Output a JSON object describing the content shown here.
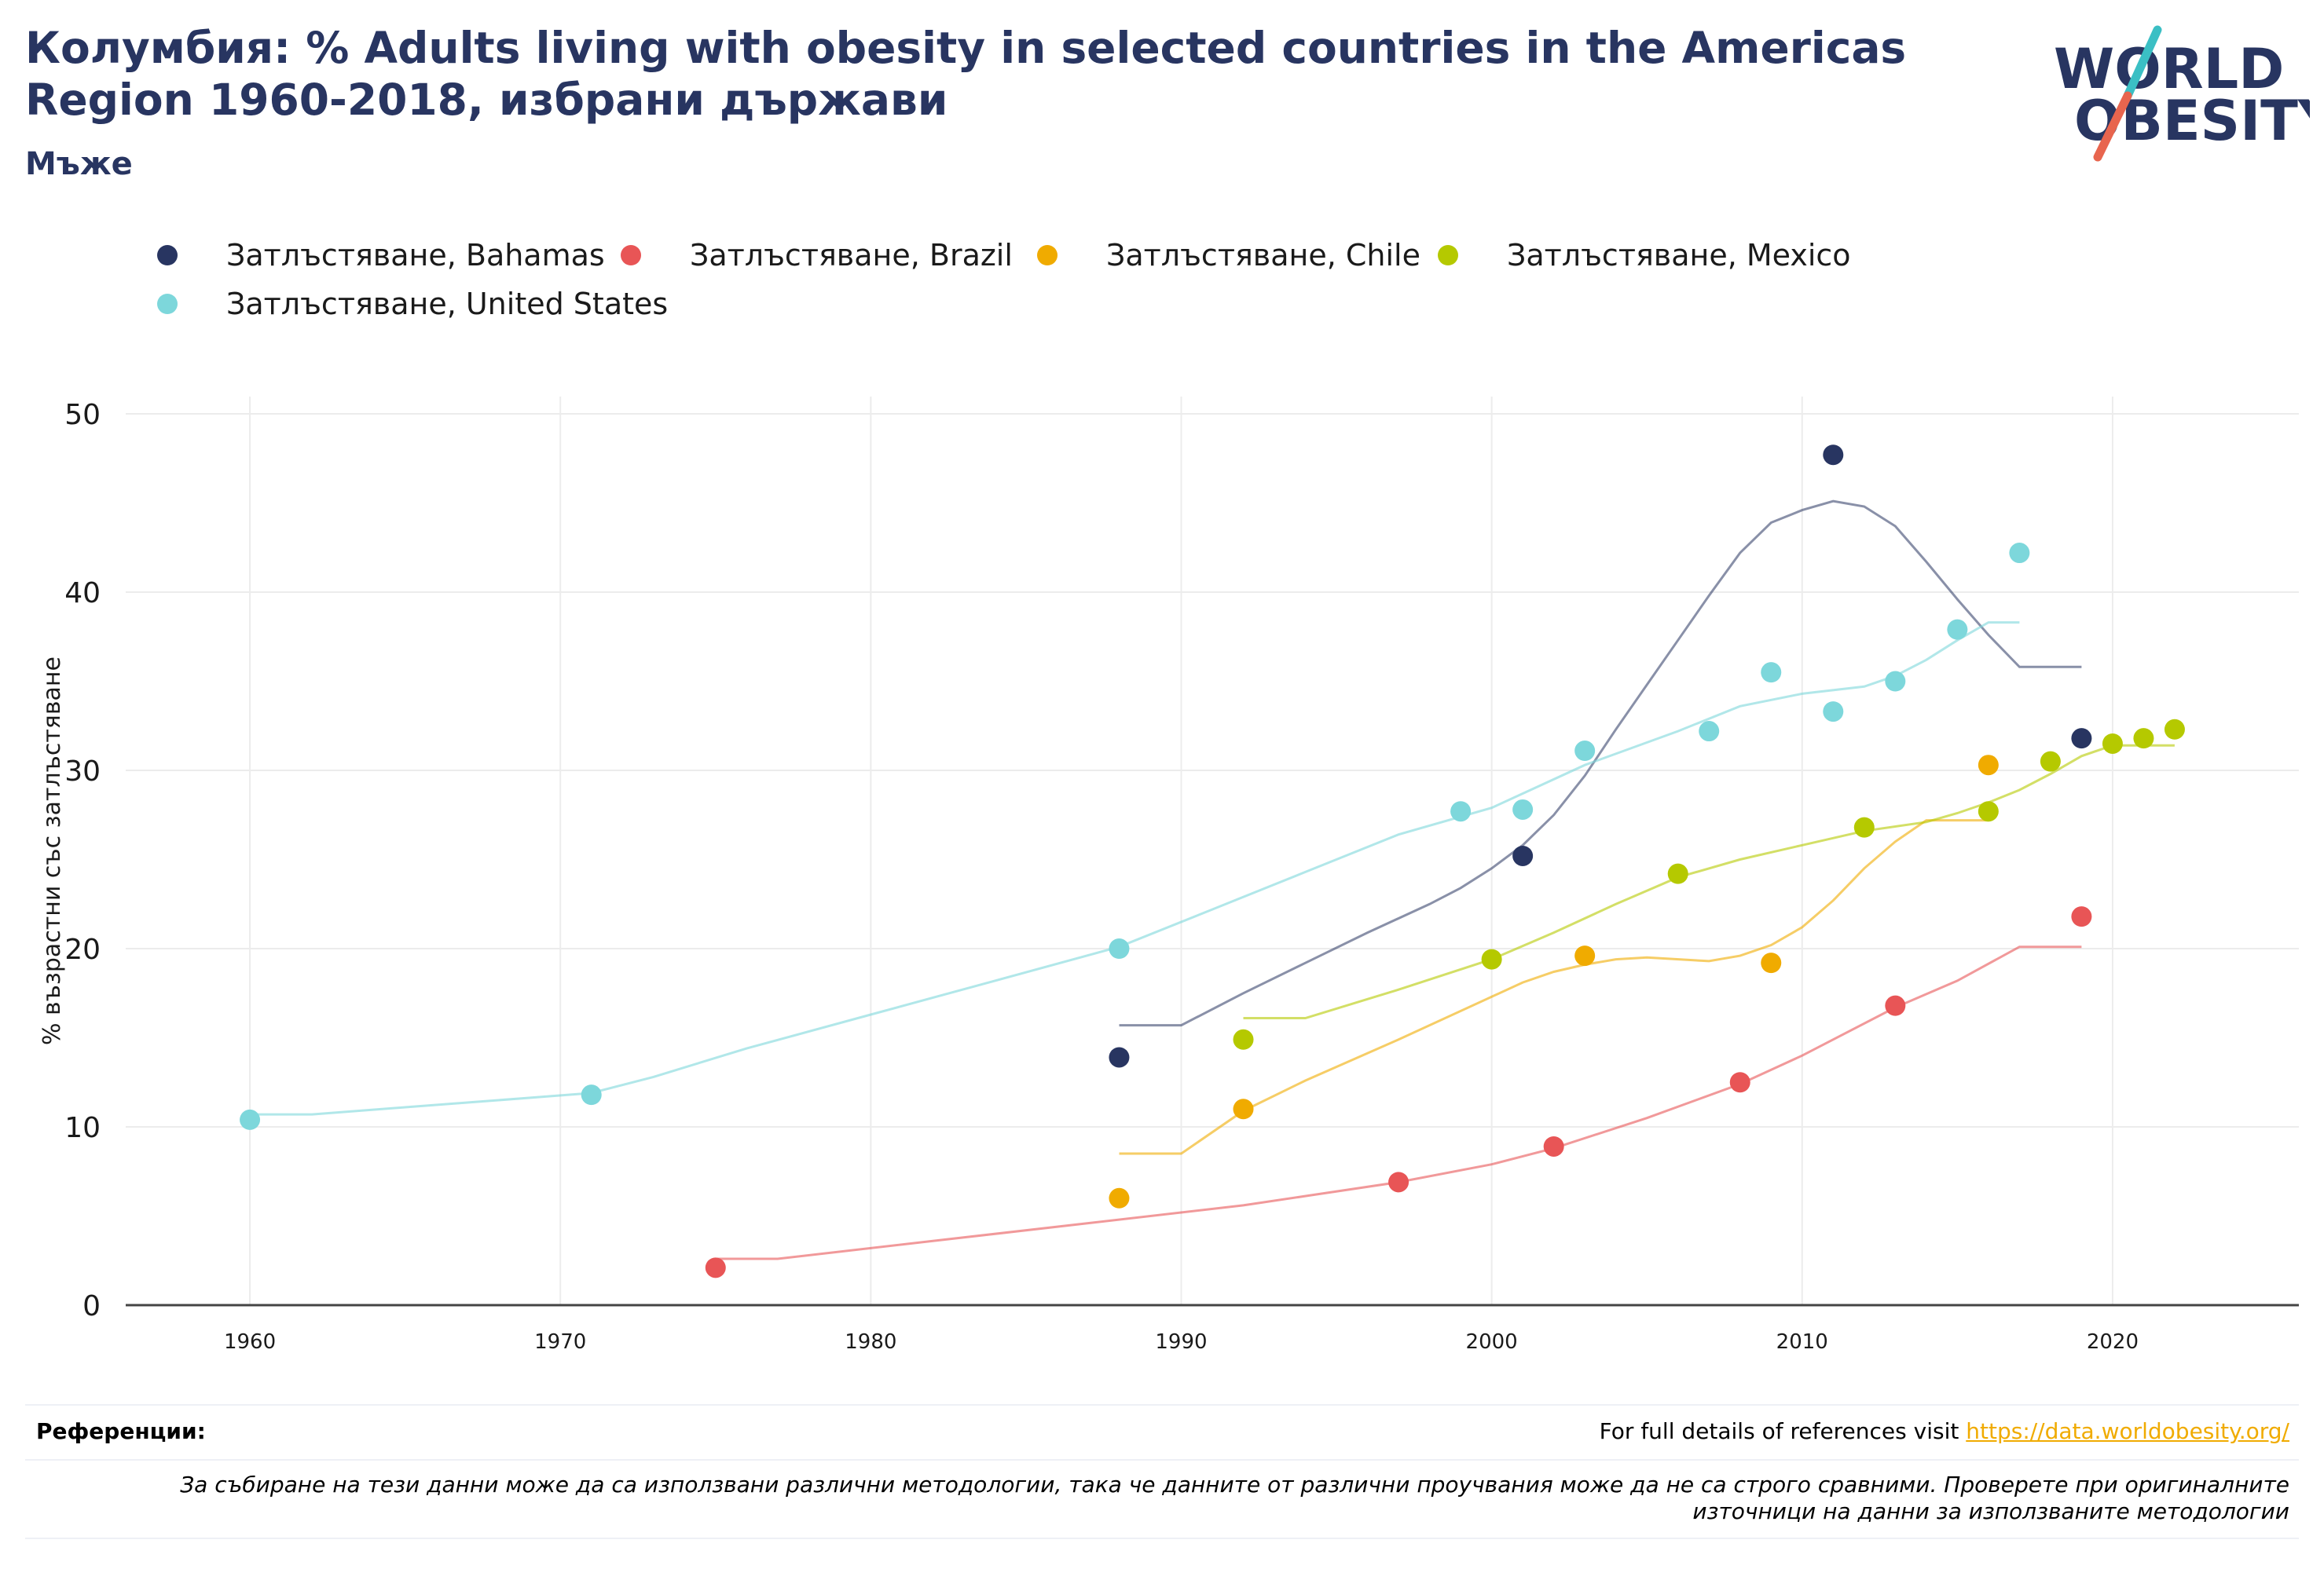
{
  "header": {
    "title": "Колумбия: % Adults living with obesity in selected countries in the Americas Region 1960-2018, избрани държави",
    "subtitle": "Мъже"
  },
  "logo": {
    "line1": "WORLD",
    "line2": "OBESITY",
    "accent_teal": "#3bbfc4",
    "accent_red": "#e8654e",
    "text_color": "#283561"
  },
  "footer": {
    "refs_label": "Референции:",
    "refs_text": "For full details of references visit ",
    "refs_link": "https://data.worldobesity.org/",
    "disclaimer": "За събиране на тези данни може да са използвани различни методологии, така че данните от различни проучвания може да не са строго сравними. Проверете при оригиналните източници на данни за използваните методологии"
  },
  "chart_data": {
    "type": "scatter",
    "title": "Колумбия: % Adults living with obesity in selected countries in the Americas Region 1960-2018, избрани държави",
    "subtitle": "Мъже",
    "xlabel": "",
    "ylabel": "% възрастни със затлъстяване",
    "xlim": [
      1956,
      2026
    ],
    "ylim": [
      0,
      50
    ],
    "xticks": [
      1960,
      1970,
      1980,
      1990,
      2000,
      2010,
      2020
    ],
    "yticks": [
      0,
      10,
      20,
      30,
      40,
      50
    ],
    "grid": true,
    "legend_position": "top-left",
    "series": [
      {
        "name": "Затлъстяване, Bahamas",
        "color": "#283561",
        "points": [
          [
            1988,
            13.9
          ],
          [
            2001,
            25.2
          ],
          [
            2011,
            47.7
          ],
          [
            2019,
            31.8
          ]
        ],
        "trend": [
          [
            1988,
            15.7
          ],
          [
            1990,
            15.7
          ],
          [
            1992,
            17.5
          ],
          [
            1994,
            19.2
          ],
          [
            1996,
            20.9
          ],
          [
            1998,
            22.5
          ],
          [
            1999,
            23.4
          ],
          [
            2000,
            24.5
          ],
          [
            2001,
            25.8
          ],
          [
            2002,
            27.5
          ],
          [
            2003,
            29.7
          ],
          [
            2004,
            32.3
          ],
          [
            2005,
            34.8
          ],
          [
            2006,
            37.3
          ],
          [
            2007,
            39.8
          ],
          [
            2008,
            42.2
          ],
          [
            2009,
            43.9
          ],
          [
            2010,
            44.6
          ],
          [
            2011,
            45.1
          ],
          [
            2012,
            44.8
          ],
          [
            2013,
            43.7
          ],
          [
            2014,
            41.7
          ],
          [
            2015,
            39.6
          ],
          [
            2016,
            37.6
          ],
          [
            2017,
            35.8
          ],
          [
            2019,
            35.8
          ]
        ]
      },
      {
        "name": "Затлъстяване, Brazil",
        "color": "#e85556",
        "points": [
          [
            1975,
            2.1
          ],
          [
            1997,
            6.9
          ],
          [
            2002,
            8.9
          ],
          [
            2008,
            12.5
          ],
          [
            2013,
            16.8
          ],
          [
            2019,
            21.8
          ]
        ],
        "trend": [
          [
            1975,
            2.6
          ],
          [
            1977,
            2.6
          ],
          [
            1982,
            3.6
          ],
          [
            1987,
            4.6
          ],
          [
            1992,
            5.6
          ],
          [
            1997,
            6.9
          ],
          [
            2000,
            7.9
          ],
          [
            2002,
            8.8
          ],
          [
            2005,
            10.5
          ],
          [
            2008,
            12.4
          ],
          [
            2010,
            14.0
          ],
          [
            2013,
            16.7
          ],
          [
            2015,
            18.2
          ],
          [
            2017,
            20.1
          ],
          [
            2019,
            20.1
          ]
        ]
      },
      {
        "name": "Затлъстяване, Chile",
        "color": "#f0ab00",
        "points": [
          [
            1988,
            6.0
          ],
          [
            1992,
            11.0
          ],
          [
            2003,
            19.6
          ],
          [
            2009,
            19.2
          ],
          [
            2016,
            30.3
          ]
        ],
        "trend": [
          [
            1988,
            8.5
          ],
          [
            1990,
            8.5
          ],
          [
            1992,
            10.9
          ],
          [
            1994,
            12.6
          ],
          [
            1997,
            14.9
          ],
          [
            2000,
            17.3
          ],
          [
            2001,
            18.1
          ],
          [
            2002,
            18.7
          ],
          [
            2003,
            19.1
          ],
          [
            2004,
            19.4
          ],
          [
            2005,
            19.5
          ],
          [
            2007,
            19.3
          ],
          [
            2008,
            19.6
          ],
          [
            2009,
            20.2
          ],
          [
            2010,
            21.2
          ],
          [
            2011,
            22.7
          ],
          [
            2012,
            24.5
          ],
          [
            2013,
            26.0
          ],
          [
            2014,
            27.2
          ],
          [
            2016,
            27.2
          ]
        ]
      },
      {
        "name": "Затлъстяване, Mexico",
        "color": "#b5c900",
        "points": [
          [
            1992,
            14.9
          ],
          [
            2000,
            19.4
          ],
          [
            2006,
            24.2
          ],
          [
            2012,
            26.8
          ],
          [
            2016,
            27.7
          ],
          [
            2018,
            30.5
          ],
          [
            2020,
            31.5
          ],
          [
            2021,
            31.8
          ],
          [
            2022,
            32.3
          ]
        ],
        "trend": [
          [
            1992,
            16.1
          ],
          [
            1994,
            16.1
          ],
          [
            1997,
            17.7
          ],
          [
            2000,
            19.4
          ],
          [
            2002,
            20.9
          ],
          [
            2004,
            22.5
          ],
          [
            2006,
            24.0
          ],
          [
            2008,
            25.0
          ],
          [
            2010,
            25.8
          ],
          [
            2012,
            26.6
          ],
          [
            2014,
            27.1
          ],
          [
            2015,
            27.6
          ],
          [
            2016,
            28.2
          ],
          [
            2017,
            28.9
          ],
          [
            2018,
            29.8
          ],
          [
            2019,
            30.8
          ],
          [
            2020,
            31.4
          ],
          [
            2022,
            31.4
          ]
        ]
      },
      {
        "name": "Затлъстяване, United States",
        "color": "#7dd7db",
        "points": [
          [
            1960,
            10.4
          ],
          [
            1971,
            11.8
          ],
          [
            1988,
            20.0
          ],
          [
            1999,
            27.7
          ],
          [
            2001,
            27.8
          ],
          [
            2003,
            31.1
          ],
          [
            2007,
            32.2
          ],
          [
            2009,
            35.5
          ],
          [
            2011,
            33.3
          ],
          [
            2013,
            35.0
          ],
          [
            2015,
            37.9
          ],
          [
            2017,
            42.2
          ]
        ],
        "trend": [
          [
            1960,
            10.7
          ],
          [
            1962,
            10.7
          ],
          [
            1965,
            11.1
          ],
          [
            1968,
            11.5
          ],
          [
            1971,
            11.9
          ],
          [
            1973,
            12.8
          ],
          [
            1976,
            14.4
          ],
          [
            1980,
            16.3
          ],
          [
            1984,
            18.2
          ],
          [
            1988,
            20.1
          ],
          [
            1991,
            22.2
          ],
          [
            1994,
            24.3
          ],
          [
            1997,
            26.4
          ],
          [
            2000,
            27.9
          ],
          [
            2003,
            30.3
          ],
          [
            2006,
            32.2
          ],
          [
            2008,
            33.6
          ],
          [
            2010,
            34.3
          ],
          [
            2012,
            34.7
          ],
          [
            2013,
            35.3
          ],
          [
            2014,
            36.2
          ],
          [
            2015,
            37.3
          ],
          [
            2016,
            38.3
          ],
          [
            2017,
            38.3
          ]
        ]
      }
    ]
  }
}
